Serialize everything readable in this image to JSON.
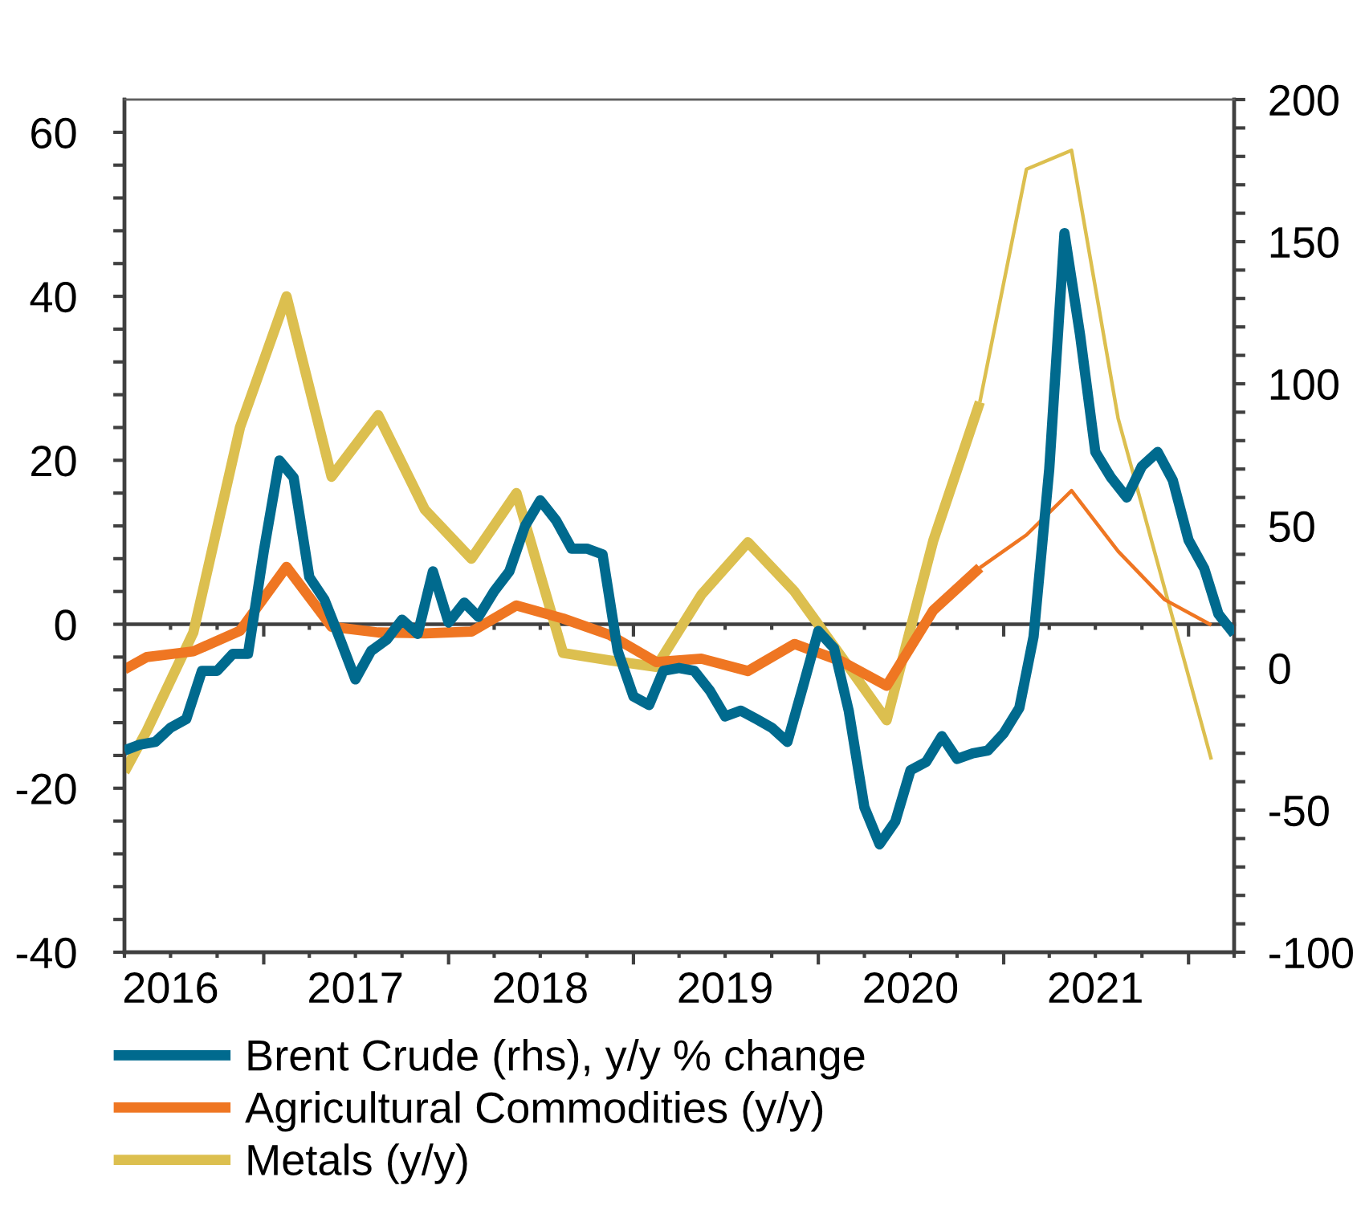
{
  "chart_data": {
    "type": "line",
    "x": [
      "2016-04",
      "2016-05",
      "2016-06",
      "2016-07",
      "2016-08",
      "2016-09",
      "2016-10",
      "2016-11",
      "2016-12",
      "2017-01",
      "2017-02",
      "2017-03",
      "2017-04",
      "2017-05",
      "2017-06",
      "2017-07",
      "2017-08",
      "2017-09",
      "2017-10",
      "2017-11",
      "2017-12",
      "2018-01",
      "2018-02",
      "2018-03",
      "2018-04",
      "2018-05",
      "2018-06",
      "2018-07",
      "2018-08",
      "2018-09",
      "2018-10",
      "2018-11",
      "2018-12",
      "2019-01",
      "2019-02",
      "2019-03",
      "2019-04",
      "2019-05",
      "2019-06",
      "2019-07",
      "2019-08",
      "2019-09",
      "2019-10",
      "2019-11",
      "2019-12",
      "2020-01",
      "2020-02",
      "2020-03",
      "2020-04",
      "2020-05",
      "2020-06",
      "2020-07",
      "2020-08",
      "2020-09",
      "2020-10",
      "2020-11",
      "2020-12",
      "2021-01",
      "2021-02",
      "2021-03",
      "2021-04",
      "2021-05",
      "2021-06",
      "2021-07",
      "2021-08",
      "2021-09",
      "2021-10",
      "2021-11",
      "2021-12",
      "2022-01",
      "2022-02",
      "2022-03",
      "2022-04"
    ],
    "series": [
      {
        "name": "Brent Crude (rhs), y/y % change",
        "color": "#006a8e",
        "axis": "y2",
        "values": [
          -29,
          -27,
          -26,
          -21,
          -18,
          -1,
          -1,
          5,
          5,
          41,
          73,
          67,
          32,
          24,
          10,
          -4,
          6,
          10,
          17,
          12,
          34,
          16,
          23,
          18,
          27,
          34,
          50,
          59,
          52,
          42,
          42,
          40,
          6,
          -10,
          -13,
          -1,
          0,
          -1,
          -8,
          -17,
          -15,
          -18,
          -21,
          -26,
          -7,
          13,
          7,
          -15,
          -49,
          -62,
          -54,
          -36,
          -33,
          -24,
          -32,
          -30,
          -29,
          -23,
          -14,
          11,
          70,
          153,
          117,
          76,
          67,
          60,
          71,
          76,
          66,
          45,
          35,
          19,
          12
        ]
      },
      {
        "name": "Agricultural Commodities (y/y)",
        "color": "#ef7622",
        "x": [
          "2016-04-01",
          "2016-05-15",
          "2016-08-15",
          "2016-11-15",
          "2017-02-15",
          "2017-05-15",
          "2017-08-15",
          "2017-11-15",
          "2018-02-15",
          "2018-05-15",
          "2018-08-15",
          "2018-11-15",
          "2019-02-15",
          "2019-05-15",
          "2019-08-15",
          "2019-11-15",
          "2020-02-15",
          "2020-05-15",
          "2020-08-15",
          "2020-11-15"
        ],
        "values": [
          -5.5,
          -4,
          -3.3,
          -0.8,
          7,
          -0.3,
          -1,
          -1.1,
          -0.9,
          2.3,
          0.7,
          -1.3,
          -4.6,
          -4.2,
          -5.7,
          -2.4,
          -4.5,
          -7.5,
          1.7,
          6.9
        ]
      },
      {
        "color": "#ef7622",
        "x": [
          "2020-11-15",
          "2021-02-15",
          "2021-05-15",
          "2021-08-15",
          "2021-11-15",
          "2022-02-15"
        ],
        "values": [
          6.9,
          10.9,
          16.3,
          8.9,
          3,
          -0.1
        ]
      },
      {
        "name": "Metals (y/y)",
        "color": "#dcbf4f",
        "x": [
          "2016-04-01",
          "2016-05-15",
          "2016-08-15",
          "2016-11-15",
          "2017-02-15",
          "2017-05-15",
          "2017-08-15",
          "2017-11-15",
          "2018-02-15",
          "2018-05-15",
          "2018-08-15",
          "2018-11-15",
          "2019-02-15",
          "2019-05-15",
          "2019-08-15",
          "2019-11-15",
          "2020-02-15",
          "2020-05-15",
          "2020-08-15",
          "2020-11-15"
        ],
        "values": [
          -18,
          -13,
          -1,
          24,
          40,
          18,
          25.5,
          14,
          8,
          16,
          -3.5,
          -4.4,
          -5.2,
          3.6,
          10,
          4,
          -3.9,
          -11.7,
          10.2,
          27.1
        ]
      },
      {
        "color": "#dcbf4f",
        "x": [
          "2020-11-15",
          "2021-02-15",
          "2021-05-15",
          "2021-08-15",
          "2021-11-15",
          "2022-02-15"
        ],
        "values": [
          27.1,
          55.5,
          57.8,
          25.1,
          4.3,
          -16.5
        ]
      }
    ],
    "xlim": [
      "2016-04",
      "2022-04"
    ],
    "xticks": [
      {
        "value": "2016-04",
        "label": null
      },
      {
        "value": "2016-07",
        "label": "2016"
      },
      {
        "value": "2016-10",
        "label": null
      },
      {
        "value": "2017-01",
        "label": null
      },
      {
        "value": "2017-04",
        "label": null
      },
      {
        "value": "2017-07",
        "label": "2017"
      },
      {
        "value": "2017-10",
        "label": null
      },
      {
        "value": "2018-01",
        "label": null
      },
      {
        "value": "2018-04",
        "label": null
      },
      {
        "value": "2018-07",
        "label": "2018"
      },
      {
        "value": "2018-10",
        "label": null
      },
      {
        "value": "2019-01",
        "label": null
      },
      {
        "value": "2019-04",
        "label": null
      },
      {
        "value": "2019-07",
        "label": "2019"
      },
      {
        "value": "2019-10",
        "label": null
      },
      {
        "value": "2020-01",
        "label": null
      },
      {
        "value": "2020-04",
        "label": null
      },
      {
        "value": "2020-07",
        "label": "2020"
      },
      {
        "value": "2020-10",
        "label": null
      },
      {
        "value": "2021-01",
        "label": null
      },
      {
        "value": "2021-04",
        "label": null
      },
      {
        "value": "2021-07",
        "label": "2021"
      },
      {
        "value": "2021-10",
        "label": null
      },
      {
        "value": "2022-01",
        "label": null
      },
      {
        "value": "2022-04",
        "label": null
      }
    ],
    "ylim": [
      -40,
      64
    ],
    "yticks": [
      -40,
      {
        "value": -36,
        "label": null
      },
      {
        "value": -32,
        "label": null
      },
      {
        "value": -28,
        "label": null
      },
      {
        "value": -24,
        "label": null
      },
      -20,
      {
        "value": -16,
        "label": null
      },
      {
        "value": -12,
        "label": null
      },
      {
        "value": -8,
        "label": null
      },
      {
        "value": -4,
        "label": null
      },
      0,
      {
        "value": 4,
        "label": null
      },
      {
        "value": 8,
        "label": null
      },
      {
        "value": 12,
        "label": null
      },
      {
        "value": 16,
        "label": null
      },
      20,
      {
        "value": 24,
        "label": null
      },
      {
        "value": 28,
        "label": null
      },
      {
        "value": 32,
        "label": null
      },
      {
        "value": 36,
        "label": null
      },
      40,
      {
        "value": 44,
        "label": null
      },
      {
        "value": 48,
        "label": null
      },
      {
        "value": 52,
        "label": null
      },
      {
        "value": 56,
        "label": null
      },
      60
    ],
    "y2lim": [
      -100,
      200
    ],
    "y2ticks": [
      -100,
      {
        "value": -90,
        "label": null
      },
      {
        "value": -80,
        "label": null
      },
      {
        "value": -70,
        "label": null
      },
      {
        "value": -60,
        "label": null
      },
      -50,
      {
        "value": -40,
        "label": null
      },
      {
        "value": -30,
        "label": null
      },
      {
        "value": -20,
        "label": null
      },
      {
        "value": -10,
        "label": null
      },
      0,
      {
        "value": 10,
        "label": null
      },
      {
        "value": 20,
        "label": null
      },
      {
        "value": 30,
        "label": null
      },
      {
        "value": 40,
        "label": null
      },
      50,
      {
        "value": 60,
        "label": null
      },
      {
        "value": 70,
        "label": null
      },
      {
        "value": 80,
        "label": null
      },
      {
        "value": 90,
        "label": null
      },
      100,
      {
        "value": 110,
        "label": null
      },
      {
        "value": 120,
        "label": null
      },
      {
        "value": 130,
        "label": null
      },
      {
        "value": 140,
        "label": null
      },
      150,
      {
        "value": 160,
        "label": null
      },
      {
        "value": 170,
        "label": null
      },
      {
        "value": 180,
        "label": null
      },
      {
        "value": 190,
        "label": null
      },
      200
    ],
    "ref_lines": [
      {
        "axis": "y",
        "value": 0,
        "color": "#404040"
      }
    ],
    "grid": false,
    "legend": "bottom"
  }
}
